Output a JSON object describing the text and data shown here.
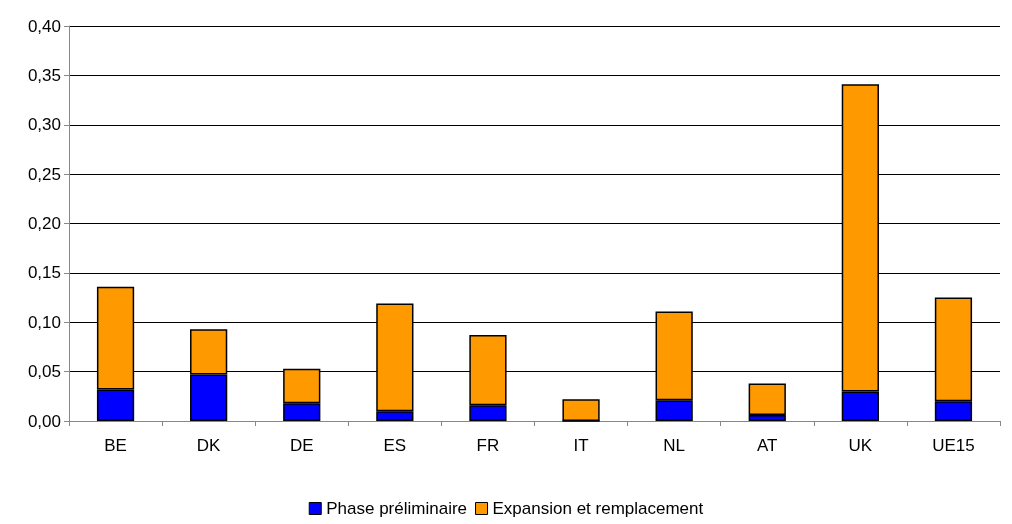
{
  "chart_data": {
    "type": "bar",
    "stacked": true,
    "categories": [
      "BE",
      "DK",
      "DE",
      "ES",
      "FR",
      "IT",
      "NL",
      "AT",
      "UK",
      "UE15"
    ],
    "series": [
      {
        "name": "Phase préliminaire",
        "color": "#0000ff",
        "values": [
          0.032,
          0.047,
          0.018,
          0.01,
          0.016,
          0.0,
          0.021,
          0.006,
          0.03,
          0.02
        ]
      },
      {
        "name": "Expansion et remplacement",
        "color": "#ff9900",
        "values": [
          0.104,
          0.046,
          0.035,
          0.109,
          0.071,
          0.022,
          0.09,
          0.032,
          0.311,
          0.105
        ]
      }
    ],
    "ylim": [
      0,
      0.4
    ],
    "yticks": [
      {
        "value": 0,
        "label": "0,00"
      },
      {
        "value": 0.05,
        "label": "0,05"
      },
      {
        "value": 0.1,
        "label": "0,10"
      },
      {
        "value": 0.15,
        "label": "0,15"
      },
      {
        "value": 0.2,
        "label": "0,20"
      },
      {
        "value": 0.25,
        "label": "0,25"
      },
      {
        "value": 0.3,
        "label": "0,30"
      },
      {
        "value": 0.35,
        "label": "0,35"
      },
      {
        "value": 0.4,
        "label": "0,40"
      }
    ],
    "grid": "y",
    "legend": "bottom"
  }
}
